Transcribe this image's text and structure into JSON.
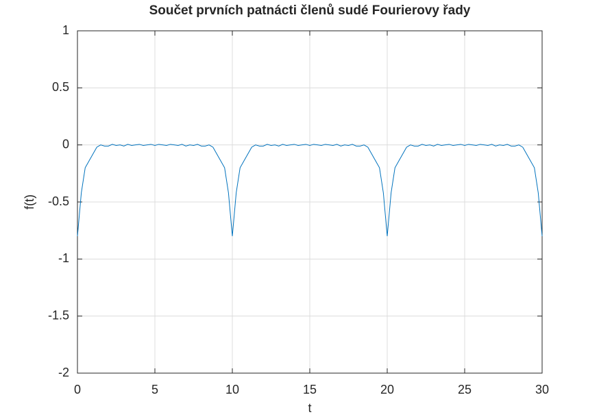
{
  "chart_data": {
    "type": "line",
    "title": "Součet prvních patnácti členů sudé Fourierovy řady",
    "x_label": "t",
    "y_label": "f(t)",
    "xlim": [
      0,
      30
    ],
    "ylim": [
      -2,
      1
    ],
    "xticks": [
      0,
      5,
      10,
      15,
      20,
      25,
      30
    ],
    "yticks": [
      -2,
      -1.5,
      -1,
      -0.5,
      0,
      0.5,
      1
    ],
    "grid": true,
    "x": [
      0,
      0.25,
      0.5,
      0.75,
      1,
      1.25,
      1.5,
      1.75,
      2,
      2.25,
      2.5,
      2.75,
      3,
      3.25,
      3.5,
      3.75,
      4,
      4.25,
      4.5,
      4.75,
      5,
      5.25,
      5.5,
      5.75,
      6,
      6.25,
      6.5,
      6.75,
      7,
      7.25,
      7.5,
      7.75,
      8,
      8.25,
      8.5,
      8.75,
      9,
      9.25,
      9.5,
      9.75,
      10,
      10.25,
      10.5,
      10.75,
      11,
      11.25,
      11.5,
      11.75,
      12,
      12.25,
      12.5,
      12.75,
      13,
      13.25,
      13.5,
      13.75,
      14,
      14.25,
      14.5,
      14.75,
      15,
      15.25,
      15.5,
      15.75,
      16,
      16.25,
      16.5,
      16.75,
      17,
      17.25,
      17.5,
      17.75,
      18,
      18.25,
      18.5,
      18.75,
      19,
      19.25,
      19.5,
      19.75,
      20,
      20.25,
      20.5,
      20.75,
      21,
      21.25,
      21.5,
      21.75,
      22,
      22.25,
      22.5,
      22.75,
      23,
      23.25,
      23.5,
      23.75,
      24,
      24.25,
      24.5,
      24.75,
      25,
      25.25,
      25.5,
      25.75,
      26,
      26.25,
      26.5,
      26.75,
      27,
      27.25,
      27.5,
      27.75,
      28,
      28.25,
      28.5,
      28.75,
      29,
      29.25,
      29.5,
      29.75,
      30
    ],
    "series": [
      {
        "color": "#0072bd",
        "values": [
          -0.8,
          -0.42,
          -0.2,
          -0.14,
          -0.08,
          -0.02,
          0,
          -0.01,
          -0.01,
          0.005,
          -0.005,
          0,
          -0.01,
          0.005,
          -0.005,
          0,
          0.005,
          -0.005,
          0,
          0.005,
          -0.005,
          0.005,
          0,
          -0.005,
          0.005,
          0,
          -0.005,
          0.005,
          -0.01,
          0,
          -0.005,
          0.005,
          -0.01,
          -0.01,
          0,
          -0.02,
          -0.08,
          -0.14,
          -0.2,
          -0.42,
          -0.8,
          -0.42,
          -0.2,
          -0.14,
          -0.08,
          -0.02,
          0,
          -0.01,
          -0.01,
          0.005,
          -0.005,
          0,
          -0.01,
          0.005,
          -0.005,
          0,
          0.005,
          -0.005,
          0,
          0.005,
          -0.005,
          0.005,
          0,
          -0.005,
          0.005,
          0,
          -0.005,
          0.005,
          -0.01,
          0,
          -0.005,
          0.005,
          -0.01,
          -0.01,
          0,
          -0.02,
          -0.08,
          -0.14,
          -0.2,
          -0.42,
          -0.8,
          -0.42,
          -0.2,
          -0.14,
          -0.08,
          -0.02,
          0,
          -0.01,
          -0.01,
          0.005,
          -0.005,
          0,
          -0.01,
          0.005,
          -0.005,
          0,
          0.005,
          -0.005,
          0,
          0.005,
          -0.005,
          0.005,
          0,
          -0.005,
          0.005,
          0,
          -0.005,
          0.005,
          -0.01,
          0,
          -0.005,
          0.005,
          -0.01,
          -0.01,
          0,
          -0.02,
          -0.08,
          -0.14,
          -0.2,
          -0.42,
          -0.8
        ]
      }
    ]
  }
}
